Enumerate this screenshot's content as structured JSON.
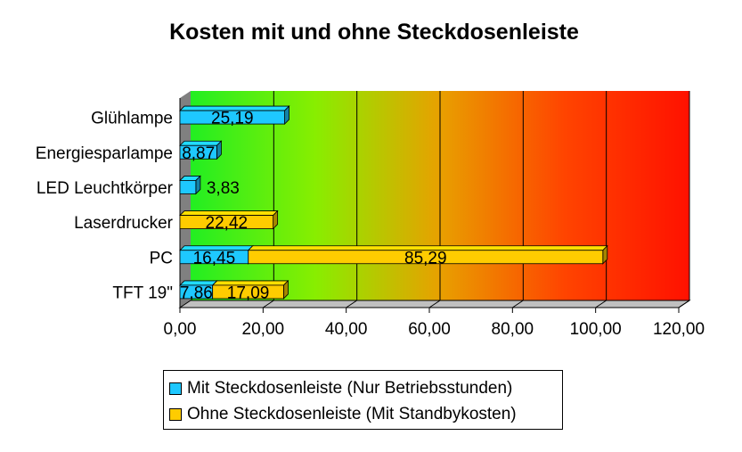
{
  "chart_data": {
    "type": "bar",
    "orientation": "horizontal",
    "stacked": true,
    "title": "Kosten mit und ohne Steckdosenleiste",
    "categories": [
      "Glühlampe",
      "Energiesparlampe",
      "LED Leuchtkörper",
      "Laserdrucker",
      "PC",
      "TFT 19\""
    ],
    "series": [
      {
        "name": "Mit Steckdosenleiste (Nur Betriebsstunden)",
        "color": "#1ec8ff",
        "values": [
          25.19,
          8.87,
          3.83,
          null,
          16.45,
          7.86
        ],
        "labels": [
          "25,19",
          "8,87",
          "3,83",
          "",
          "16,45",
          "7,86"
        ]
      },
      {
        "name": "Ohne Steckdosenleiste (Mit Standbykosten)",
        "color": "#ffcc00",
        "values": [
          null,
          null,
          null,
          22.42,
          85.29,
          17.09
        ],
        "labels": [
          "",
          "",
          "",
          "22,42",
          "85,29",
          "17,09"
        ]
      }
    ],
    "xlim": [
      0,
      120
    ],
    "xticks": [
      "0,00",
      "20,00",
      "40,00",
      "60,00",
      "80,00",
      "100,00",
      "120,00"
    ],
    "grid": true,
    "background_gradient": [
      "#22ee22",
      "#88ee00",
      "#e8a000",
      "#ff4400",
      "#ff1100"
    ],
    "legend_position": "bottom"
  }
}
